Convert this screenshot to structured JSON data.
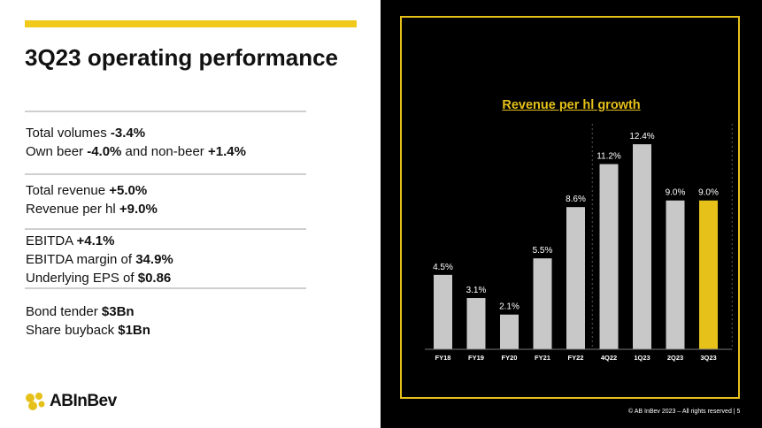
{
  "slide": {
    "title": "3Q23 operating performance",
    "footer": "© AB InBev 2023 – All rights reserved | 5"
  },
  "kpis": {
    "group1": [
      {
        "segments": [
          {
            "text": "Total volumes ",
            "bold": false
          },
          {
            "text": "-3.4%",
            "bold": true
          }
        ]
      },
      {
        "segments": [
          {
            "text": "Own beer ",
            "bold": false
          },
          {
            "text": "-4.0%",
            "bold": true
          },
          {
            "text": " and non-beer ",
            "bold": false
          },
          {
            "text": "+1.4%",
            "bold": true
          }
        ]
      }
    ],
    "group2": [
      {
        "segments": [
          {
            "text": "Total revenue ",
            "bold": false
          },
          {
            "text": "+5.0%",
            "bold": true
          }
        ]
      },
      {
        "segments": [
          {
            "text": "Revenue per hl ",
            "bold": false
          },
          {
            "text": "+9.0%",
            "bold": true
          }
        ]
      }
    ],
    "group3": [
      {
        "segments": [
          {
            "text": "EBITDA ",
            "bold": false
          },
          {
            "text": "+4.1%",
            "bold": true
          }
        ]
      },
      {
        "segments": [
          {
            "text": "EBITDA margin of ",
            "bold": false
          },
          {
            "text": "34.9%",
            "bold": true
          }
        ]
      },
      {
        "segments": [
          {
            "text": "Underlying EPS of ",
            "bold": false
          },
          {
            "text": "$0.86",
            "bold": true
          }
        ]
      }
    ],
    "group4": [
      {
        "segments": [
          {
            "text": "Bond tender ",
            "bold": false
          },
          {
            "text": "$3Bn",
            "bold": true
          }
        ]
      },
      {
        "segments": [
          {
            "text": "Share buyback ",
            "bold": false
          },
          {
            "text": "$1Bn",
            "bold": true
          }
        ]
      }
    ]
  },
  "logo": {
    "text": "ABInBev",
    "icon": "abinbev-logo-icon"
  },
  "colors": {
    "accent": "#e5c11a",
    "bar_gray": "#c8c8c8",
    "bar_highlight": "#e5c11a",
    "background_dark": "#000000"
  },
  "chart_data": {
    "type": "bar",
    "title": "Revenue per hl growth",
    "categories": [
      "FY18",
      "FY19",
      "FY20",
      "FY21",
      "FY22",
      "4Q22",
      "1Q23",
      "2Q23",
      "3Q23"
    ],
    "values": [
      4.5,
      3.1,
      2.1,
      5.5,
      8.6,
      11.2,
      12.4,
      9.0,
      9.0
    ],
    "data_labels": [
      "4.5%",
      "3.1%",
      "2.1%",
      "5.5%",
      "8.6%",
      "11.2%",
      "12.4%",
      "9.0%",
      "9.0%"
    ],
    "highlight": "3Q23",
    "xlabel": "",
    "ylabel": "",
    "grid": false,
    "separator_after": "FY22"
  }
}
